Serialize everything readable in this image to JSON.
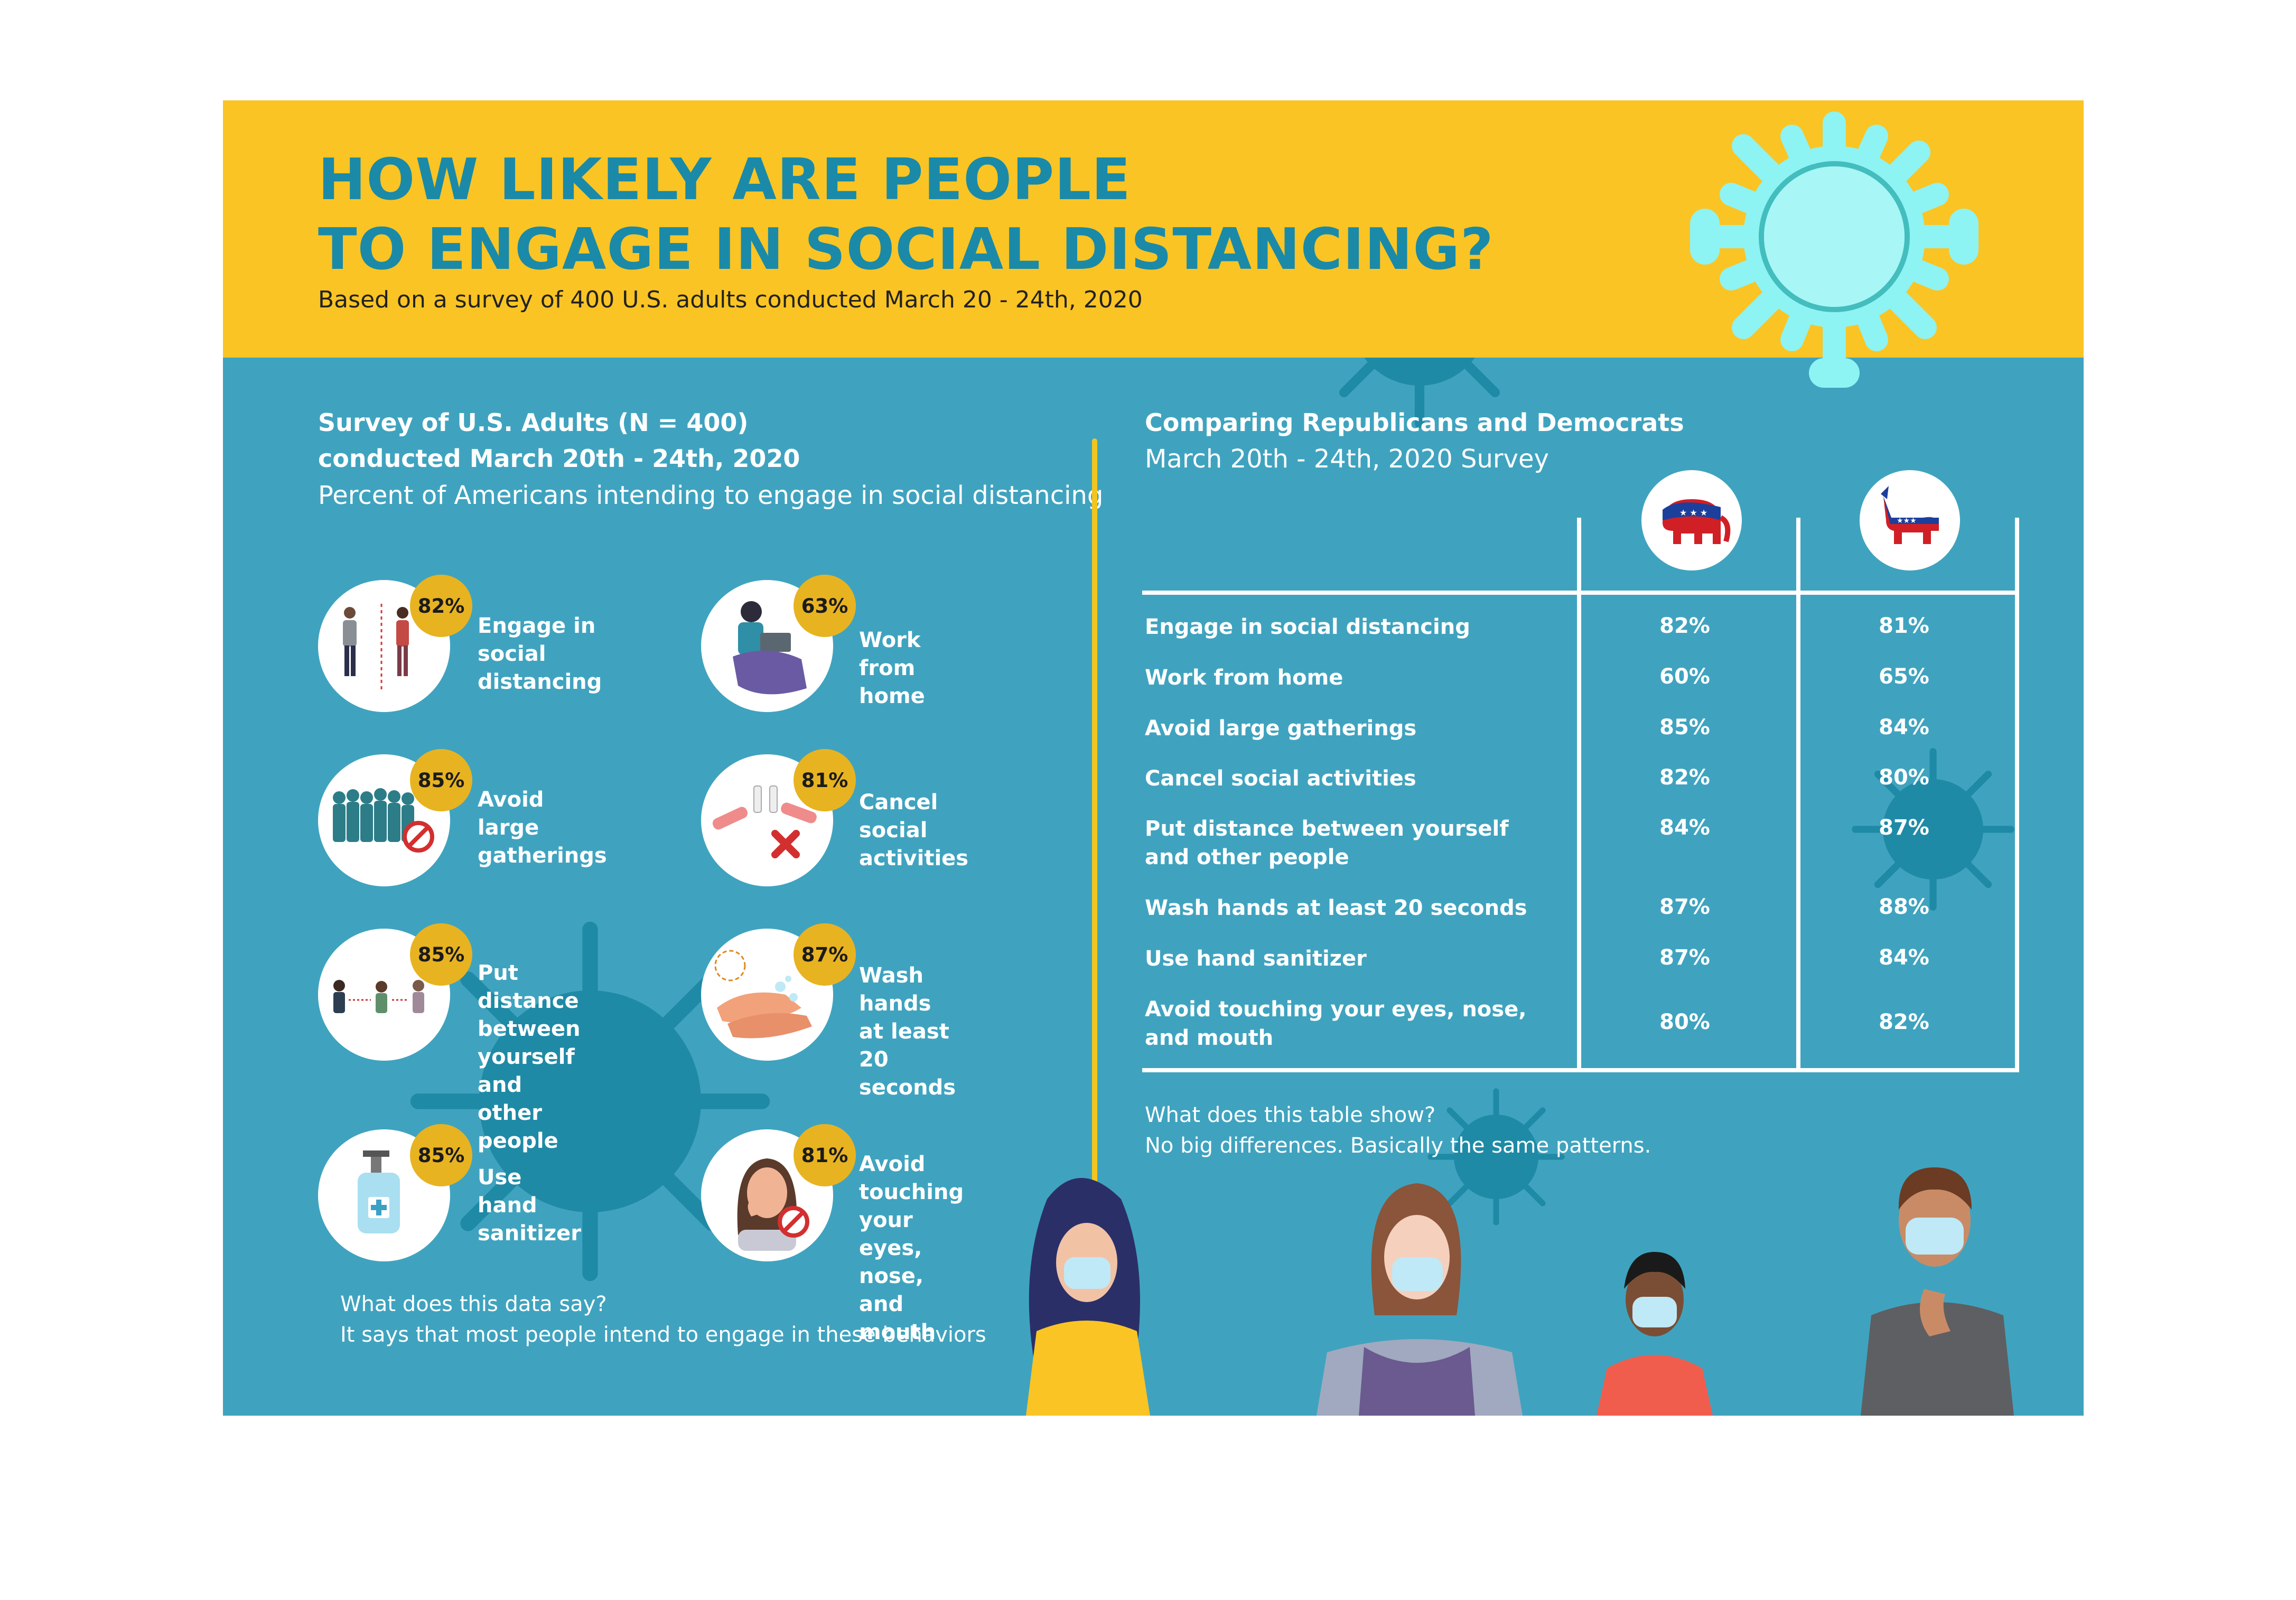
{
  "header": {
    "title_line1": "HOW LIKELY ARE PEOPLE",
    "title_line2": "TO ENGAGE IN SOCIAL DISTANCING?",
    "subtitle": "Based on a survey of 400 U.S. adults conducted March 20 - 24th, 2020"
  },
  "left": {
    "heading1": "Survey of U.S. Adults (N = 400)",
    "heading2": "conducted March 20th - 24th, 2020",
    "heading3": "Percent of Americans intending to engage in social distancing",
    "items": [
      {
        "percent": "82%",
        "label": "Engage in\nsocial distancing",
        "icon": "two-people-icon"
      },
      {
        "percent": "63%",
        "label": "Work from home",
        "icon": "laptop-person-icon"
      },
      {
        "percent": "85%",
        "label": "Avoid\nlarge gatherings",
        "icon": "crowd-icon"
      },
      {
        "percent": "81%",
        "label": "Cancel\nsocial activities",
        "icon": "toast-cancel-icon"
      },
      {
        "percent": "85%",
        "label": "Put distance\nbetween yourself\nand other people",
        "icon": "people-distance-icon"
      },
      {
        "percent": "87%",
        "label": "Wash hands\nat least 20 seconds",
        "icon": "hand-wash-icon"
      },
      {
        "percent": "85%",
        "label": "Use hand\nsanitizer",
        "icon": "sanitizer-bottle-icon"
      },
      {
        "percent": "81%",
        "label": "Avoid touching\nyour eyes,\nnose, and mouth",
        "icon": "face-touch-icon"
      }
    ],
    "note_q": "What does this data say?",
    "note_a": "It says that most people intend to engage in these behaviors"
  },
  "right": {
    "heading1": "Comparing Republicans and Democrats",
    "heading2": "March 20th - 24th, 2020 Survey",
    "party_icons": [
      "republican-elephant-icon",
      "democrat-donkey-icon"
    ],
    "rows": [
      {
        "label": "Engage in social distancing",
        "rep": "82%",
        "dem": "81%"
      },
      {
        "label": "Work from home",
        "rep": "60%",
        "dem": "65%"
      },
      {
        "label": "Avoid  large gatherings",
        "rep": "85%",
        "dem": "84%"
      },
      {
        "label": "Cancel social activities",
        "rep": "82%",
        "dem": "80%"
      },
      {
        "label": "Put distance between yourself\nand other people",
        "rep": "84%",
        "dem": "87%"
      },
      {
        "label": "Wash hands at least 20 seconds",
        "rep": "87%",
        "dem": "88%"
      },
      {
        "label": "Use hand sanitizer",
        "rep": "87%",
        "dem": "84%"
      },
      {
        "label": "Avoid touching your eyes, nose,\nand mouth",
        "rep": "80%",
        "dem": "82%"
      }
    ],
    "note_q": "What does this table show?",
    "note_a": "No big differences. Basically the same patterns."
  },
  "colors": {
    "yellow": "#fac424",
    "teal": "#3fa3bf",
    "dark_teal": "#1a8aa8",
    "badge": "#e8b321",
    "virus_light": "#8ef3f3"
  }
}
